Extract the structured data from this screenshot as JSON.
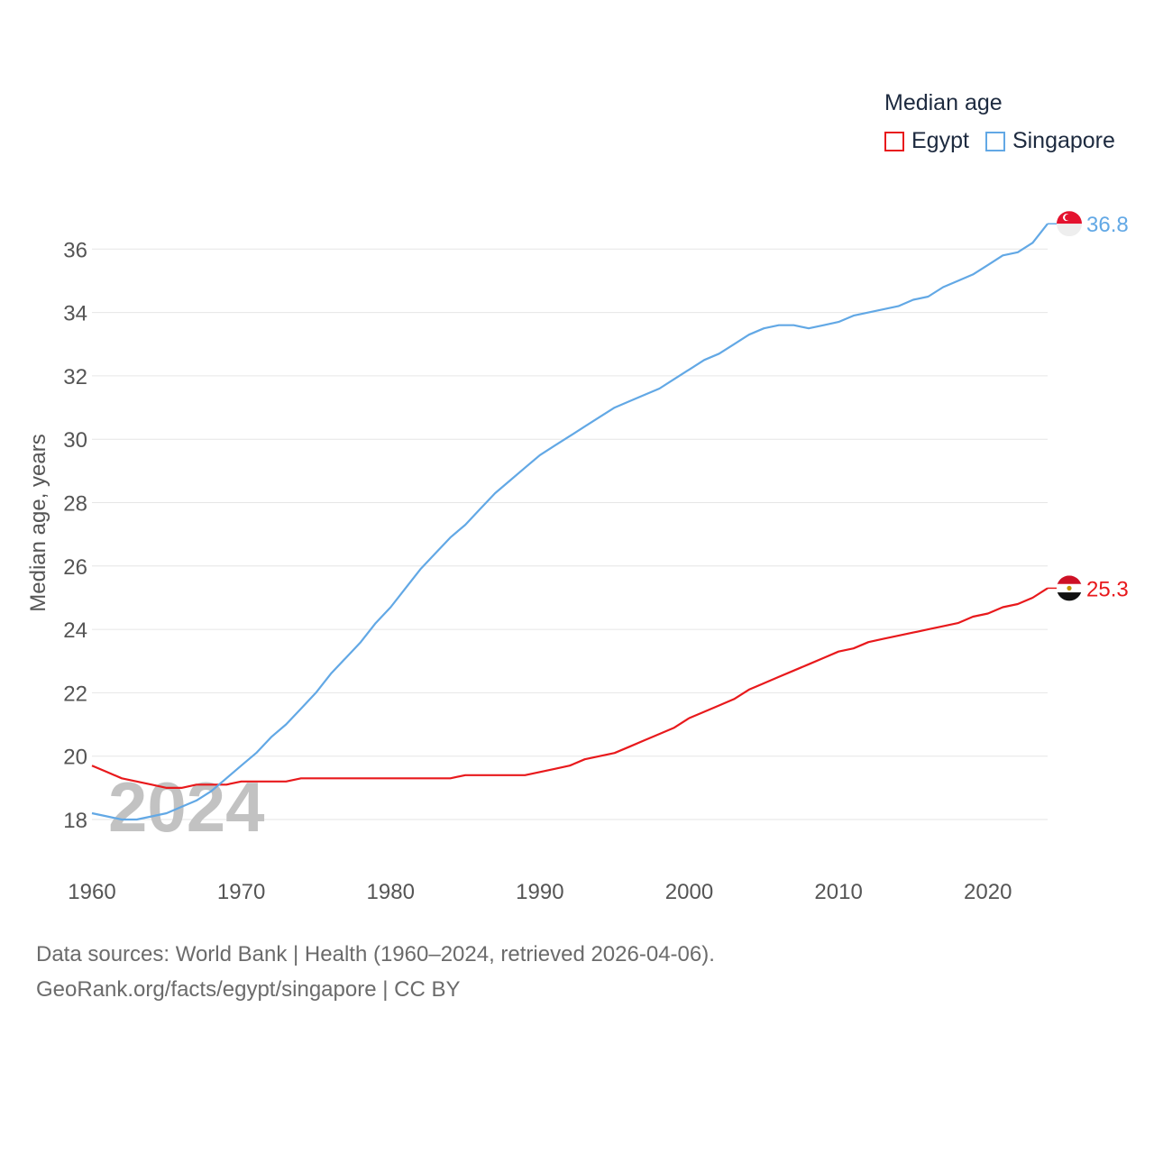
{
  "legend": {
    "title": "Median age",
    "items": [
      {
        "name": "Egypt",
        "color": "#e8191c"
      },
      {
        "name": "Singapore",
        "color": "#62a8e5"
      }
    ]
  },
  "footer": {
    "line1": "Data sources: World Bank | Health (1960–2024, retrieved 2026-04-06).",
    "line2": "GeoRank.org/facts/egypt/singapore | CC BY"
  },
  "chart_data": {
    "type": "line",
    "title": "Median age",
    "xlabel": "",
    "ylabel": "Median age, years",
    "year_watermark": "2024",
    "xlim": [
      1960,
      2024
    ],
    "ylim": [
      17,
      37.5
    ],
    "xticks": [
      1960,
      1970,
      1980,
      1990,
      2000,
      2010,
      2020
    ],
    "yticks": [
      18,
      20,
      22,
      24,
      26,
      28,
      30,
      32,
      34,
      36
    ],
    "grid": true,
    "x": [
      1960,
      1961,
      1962,
      1963,
      1964,
      1965,
      1966,
      1967,
      1968,
      1969,
      1970,
      1971,
      1972,
      1973,
      1974,
      1975,
      1976,
      1977,
      1978,
      1979,
      1980,
      1981,
      1982,
      1983,
      1984,
      1985,
      1986,
      1987,
      1988,
      1989,
      1990,
      1991,
      1992,
      1993,
      1994,
      1995,
      1996,
      1997,
      1998,
      1999,
      2000,
      2001,
      2002,
      2003,
      2004,
      2005,
      2006,
      2007,
      2008,
      2009,
      2010,
      2011,
      2012,
      2013,
      2014,
      2015,
      2016,
      2017,
      2018,
      2019,
      2020,
      2021,
      2022,
      2023,
      2024
    ],
    "series": [
      {
        "name": "Egypt",
        "color": "#e8191c",
        "flag": "egypt-flag",
        "end_label": "25.3",
        "values": [
          19.7,
          19.5,
          19.3,
          19.2,
          19.1,
          19.0,
          19.0,
          19.1,
          19.1,
          19.1,
          19.2,
          19.2,
          19.2,
          19.2,
          19.3,
          19.3,
          19.3,
          19.3,
          19.3,
          19.3,
          19.3,
          19.3,
          19.3,
          19.3,
          19.3,
          19.4,
          19.4,
          19.4,
          19.4,
          19.4,
          19.5,
          19.6,
          19.7,
          19.9,
          20.0,
          20.1,
          20.3,
          20.5,
          20.7,
          20.9,
          21.2,
          21.4,
          21.6,
          21.8,
          22.1,
          22.3,
          22.5,
          22.7,
          22.9,
          23.1,
          23.3,
          23.4,
          23.6,
          23.7,
          23.8,
          23.9,
          24.0,
          24.1,
          24.2,
          24.4,
          24.5,
          24.7,
          24.8,
          25.0,
          25.3
        ]
      },
      {
        "name": "Singapore",
        "color": "#62a8e5",
        "flag": "singapore-flag",
        "end_label": "36.8",
        "values": [
          18.2,
          18.1,
          18.0,
          18.0,
          18.1,
          18.2,
          18.4,
          18.6,
          18.9,
          19.3,
          19.7,
          20.1,
          20.6,
          21.0,
          21.5,
          22.0,
          22.6,
          23.1,
          23.6,
          24.2,
          24.7,
          25.3,
          25.9,
          26.4,
          26.9,
          27.3,
          27.8,
          28.3,
          28.7,
          29.1,
          29.5,
          29.8,
          30.1,
          30.4,
          30.7,
          31.0,
          31.2,
          31.4,
          31.6,
          31.9,
          32.2,
          32.5,
          32.7,
          33.0,
          33.3,
          33.5,
          33.6,
          33.6,
          33.5,
          33.6,
          33.7,
          33.9,
          34.0,
          34.1,
          34.2,
          34.4,
          34.5,
          34.8,
          35.0,
          35.2,
          35.5,
          35.8,
          35.9,
          36.2,
          36.8
        ]
      }
    ]
  }
}
